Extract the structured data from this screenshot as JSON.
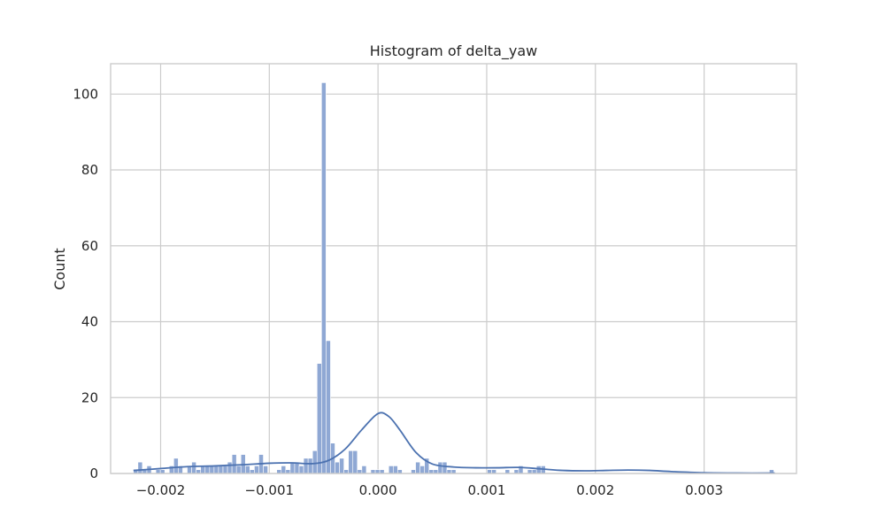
{
  "chart_data": {
    "type": "bar",
    "title": "Histogram of delta_yaw",
    "xlabel": "",
    "ylabel": "Count",
    "xlim": [
      -0.00246,
      0.00385
    ],
    "ylim": [
      0,
      108
    ],
    "grid": true,
    "x_ticks": [
      {
        "value": -0.002,
        "label": "−0.002"
      },
      {
        "value": -0.001,
        "label": "−0.001"
      },
      {
        "value": 0.0,
        "label": "0.000"
      },
      {
        "value": 0.001,
        "label": "0.001"
      },
      {
        "value": 0.002,
        "label": "0.002"
      },
      {
        "value": 0.003,
        "label": "0.003"
      }
    ],
    "y_ticks": [
      {
        "value": 0,
        "label": "0"
      },
      {
        "value": 20,
        "label": "20"
      },
      {
        "value": 40,
        "label": "40"
      },
      {
        "value": 60,
        "label": "60"
      },
      {
        "value": 80,
        "label": "80"
      },
      {
        "value": 100,
        "label": "100"
      }
    ],
    "bar_color": "#8fa8d4",
    "kde_color": "#4c72b0",
    "bins": {
      "start": -0.00225,
      "width": 4.12e-05,
      "counts": [
        1,
        3,
        1,
        2,
        0,
        1,
        1,
        0,
        2,
        4,
        2,
        0,
        2,
        3,
        1,
        2,
        2,
        2,
        2,
        2,
        2,
        3,
        5,
        2,
        5,
        2,
        1,
        2,
        5,
        2,
        0,
        0,
        1,
        2,
        1,
        3,
        3,
        2,
        4,
        4,
        6,
        29,
        103,
        35,
        8,
        3,
        4,
        1,
        6,
        6,
        1,
        2,
        0,
        1,
        1,
        1,
        0,
        2,
        2,
        1,
        0,
        0,
        1,
        3,
        2,
        4,
        1,
        1,
        3,
        3,
        1,
        1,
        0,
        0,
        0,
        0,
        0,
        0,
        0,
        1,
        1,
        0,
        0,
        1,
        0,
        1,
        2,
        0,
        1,
        1,
        2,
        2,
        0,
        0,
        0,
        0,
        0,
        0,
        0,
        0,
        0,
        0,
        0,
        0,
        0,
        0,
        0,
        0,
        0,
        0,
        0,
        0,
        0,
        0,
        0,
        0,
        0,
        0,
        0,
        0,
        0,
        0,
        0,
        0,
        0,
        0,
        0,
        0,
        0,
        0,
        0,
        0,
        0,
        0,
        0,
        0,
        0,
        0,
        0,
        0,
        0,
        0,
        1
      ]
    },
    "kde": [
      [
        -0.00225,
        0.8
      ],
      [
        -0.002,
        1.3
      ],
      [
        -0.00175,
        1.8
      ],
      [
        -0.0015,
        2.0
      ],
      [
        -0.00125,
        2.3
      ],
      [
        -0.001,
        2.7
      ],
      [
        -0.0008,
        2.8
      ],
      [
        -0.0006,
        2.6
      ],
      [
        -0.00045,
        3.5
      ],
      [
        -0.0003,
        6.5
      ],
      [
        -0.00015,
        11.5
      ],
      [
        0.0,
        15.8
      ],
      [
        0.0001,
        15.0
      ],
      [
        0.0002,
        11.5
      ],
      [
        0.00035,
        5.5
      ],
      [
        0.0005,
        2.5
      ],
      [
        0.0007,
        1.7
      ],
      [
        0.0009,
        1.5
      ],
      [
        0.0011,
        1.5
      ],
      [
        0.0013,
        1.6
      ],
      [
        0.0015,
        1.2
      ],
      [
        0.0017,
        0.8
      ],
      [
        0.0019,
        0.7
      ],
      [
        0.0021,
        0.8
      ],
      [
        0.0023,
        0.9
      ],
      [
        0.0025,
        0.8
      ],
      [
        0.0027,
        0.5
      ],
      [
        0.003,
        0.2
      ],
      [
        0.0033,
        0.1
      ],
      [
        0.00365,
        0.1
      ]
    ]
  }
}
